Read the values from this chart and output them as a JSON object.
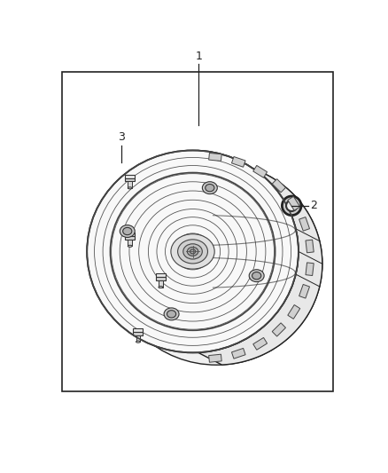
{
  "bg_color": "#ffffff",
  "border_color": "#222222",
  "line_color": "#222222",
  "label_1": "1",
  "label_2": "2",
  "label_3": "3",
  "figsize": [
    4.38,
    5.33
  ],
  "dpi": 100
}
